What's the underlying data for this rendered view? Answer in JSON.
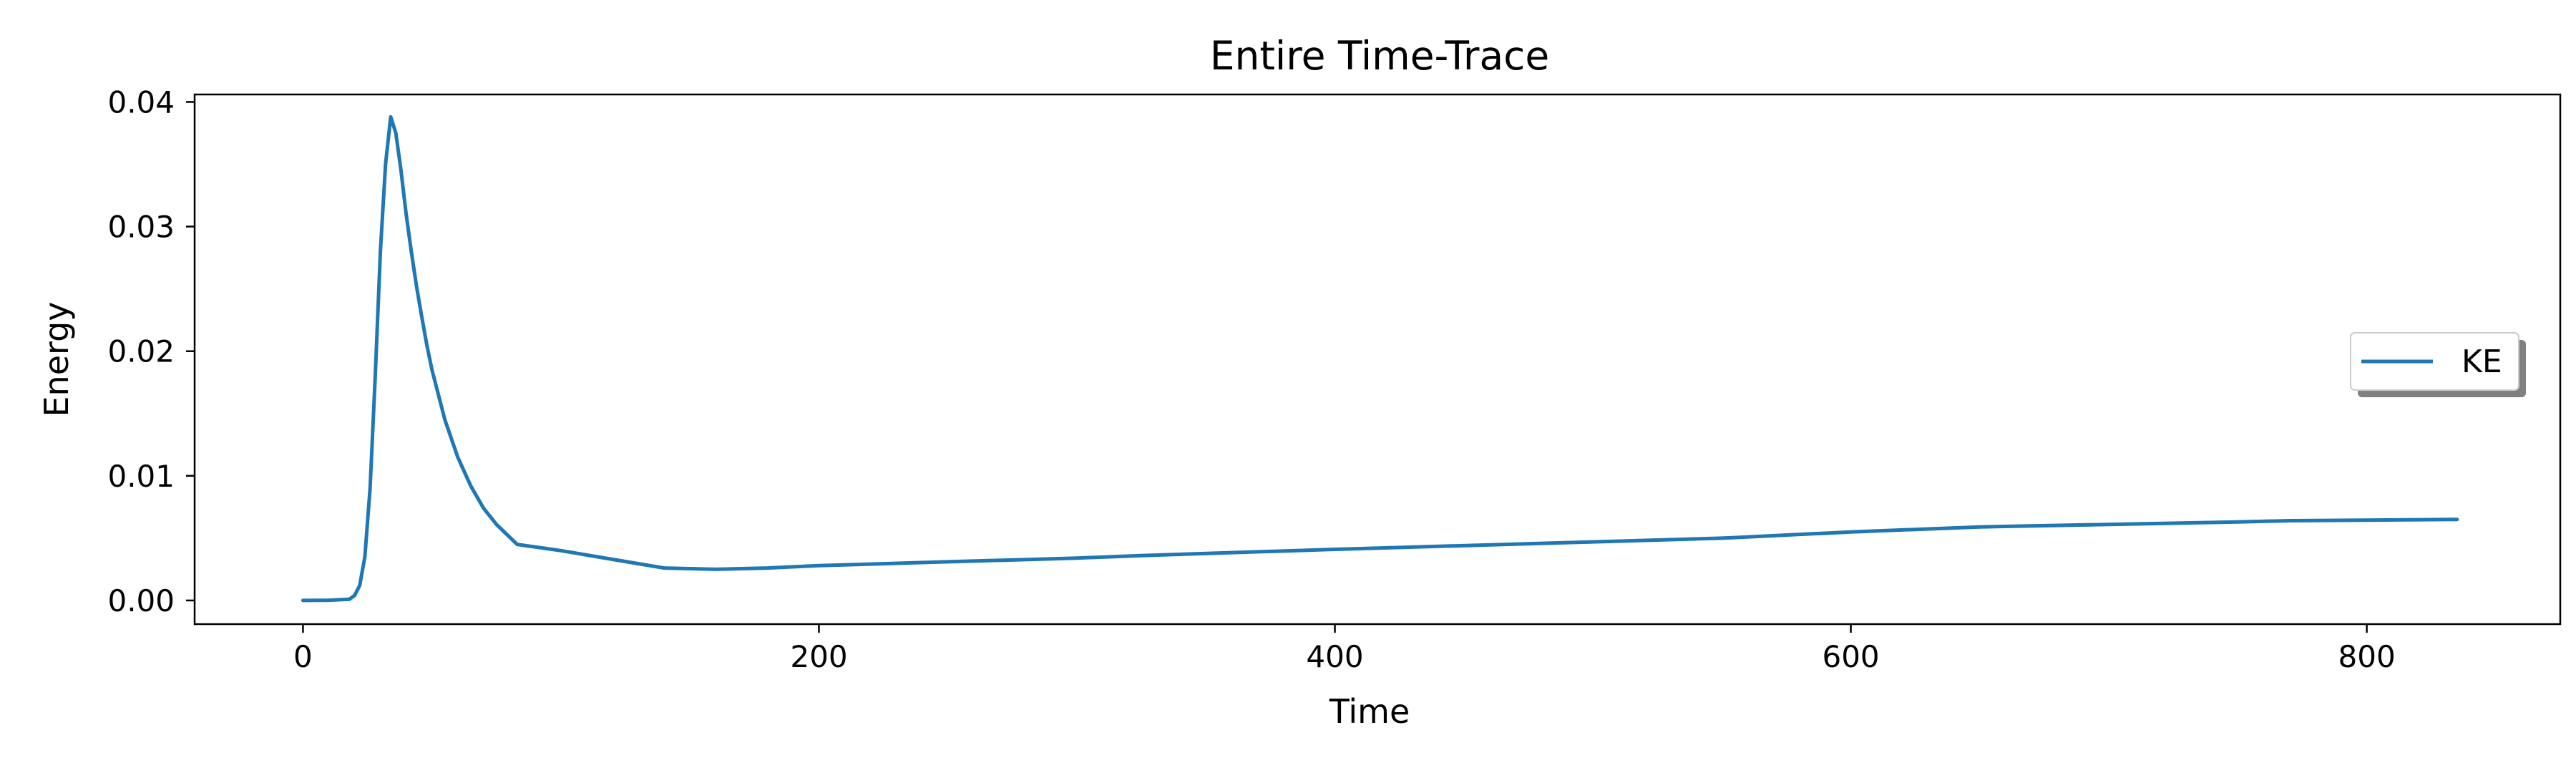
{
  "chart_data": {
    "type": "line",
    "title": "Entire Time-Trace",
    "xlabel": "Time",
    "ylabel": "Energy",
    "xlim": [
      -42,
      875
    ],
    "ylim": [
      -0.0019,
      0.0406
    ],
    "xticks": [
      0,
      200,
      400,
      600,
      800
    ],
    "xtick_labels": [
      "0",
      "200",
      "400",
      "600",
      "800"
    ],
    "yticks": [
      0.0,
      0.01,
      0.02,
      0.03,
      0.04
    ],
    "ytick_labels": [
      "0.00",
      "0.01",
      "0.02",
      "0.03",
      "0.04"
    ],
    "grid": false,
    "legend_position": "center-right",
    "series": [
      {
        "name": "KE",
        "color": "#1f77b4",
        "x": [
          0,
          10,
          18,
          20,
          22,
          24,
          26,
          28,
          30,
          32,
          34,
          36,
          38,
          40,
          42,
          44,
          46,
          48,
          50,
          55,
          60,
          65,
          70,
          75,
          80,
          83,
          100,
          120,
          140,
          160,
          180,
          200,
          250,
          300,
          325,
          400,
          500,
          550,
          600,
          650,
          700,
          750,
          770,
          835
        ],
        "y": [
          0.0,
          2e-05,
          0.0001,
          0.0004,
          0.0012,
          0.0035,
          0.009,
          0.018,
          0.028,
          0.035,
          0.0388,
          0.0375,
          0.0345,
          0.031,
          0.028,
          0.0252,
          0.0228,
          0.0205,
          0.0185,
          0.0145,
          0.0115,
          0.0092,
          0.0074,
          0.0061,
          0.0051,
          0.0045,
          0.004,
          0.0033,
          0.0026,
          0.0025,
          0.0026,
          0.0028,
          0.0031,
          0.0034,
          0.0036,
          0.0041,
          0.0047,
          0.005,
          0.0055,
          0.0059,
          0.0061,
          0.0063,
          0.0064,
          0.0065
        ]
      }
    ]
  }
}
